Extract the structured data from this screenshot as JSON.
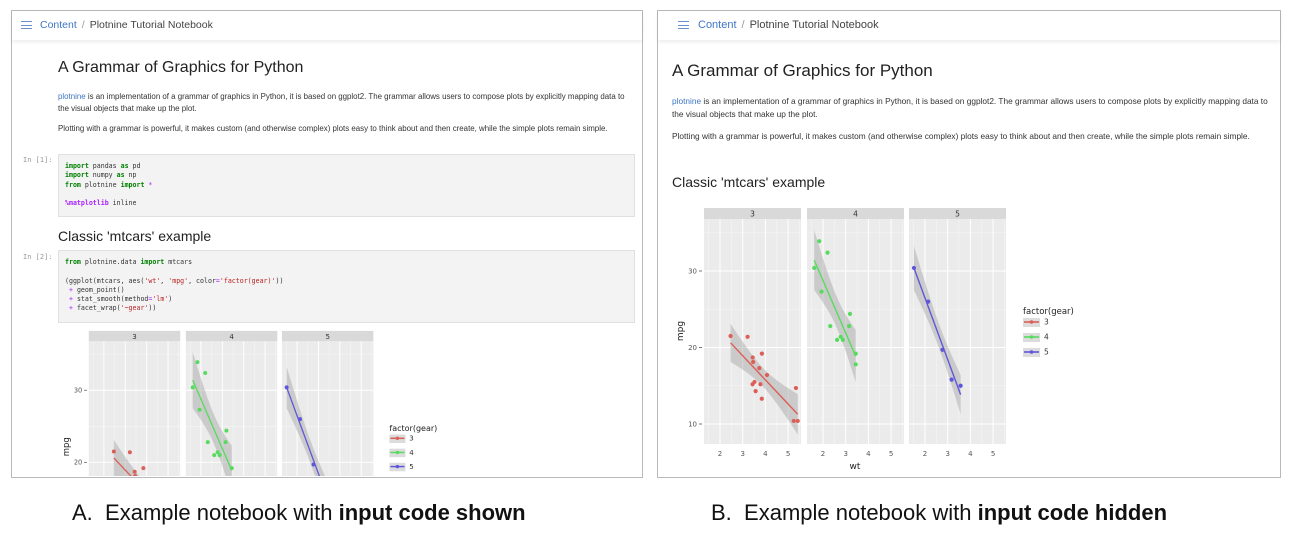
{
  "breadcrumb": {
    "root": "Content",
    "separator": "/",
    "current": "Plotnine Tutorial Notebook"
  },
  "notebook": {
    "title": "A Grammar of Graphics for Python",
    "para1_link": "plotnine",
    "para1_rest": " is an implementation of a grammar of graphics in Python, it is based on ggplot2. The grammar allows users to compose plots by explicitly mapping data to the visual objects that make up the plot.",
    "para2": "Plotting with a grammar is powerful, it makes custom (and otherwise complex) plots easy to think about and then create, while the simple plots remain simple.",
    "heading2": "Classic 'mtcars' example",
    "cells": [
      {
        "prompt": "In [1]:",
        "lines": [
          [
            {
              "k": "kw",
              "t": "import"
            },
            {
              "k": "",
              "t": " pandas "
            },
            {
              "k": "kw",
              "t": "as"
            },
            {
              "k": "",
              "t": " pd"
            }
          ],
          [
            {
              "k": "kw",
              "t": "import"
            },
            {
              "k": "",
              "t": " numpy "
            },
            {
              "k": "kw",
              "t": "as"
            },
            {
              "k": "",
              "t": " np"
            }
          ],
          [
            {
              "k": "kw",
              "t": "from"
            },
            {
              "k": "",
              "t": " plotnine "
            },
            {
              "k": "kw",
              "t": "import"
            },
            {
              "k": "",
              "t": " "
            },
            {
              "k": "op",
              "t": "*"
            }
          ],
          [],
          [
            {
              "k": "magic",
              "t": "%matplotlib"
            },
            {
              "k": "",
              "t": " inline"
            }
          ]
        ]
      },
      {
        "prompt": "In [2]:",
        "lines": [
          [
            {
              "k": "kw",
              "t": "from"
            },
            {
              "k": "",
              "t": " plotnine.data "
            },
            {
              "k": "kw",
              "t": "import"
            },
            {
              "k": "",
              "t": " mtcars"
            }
          ],
          [],
          [
            {
              "k": "",
              "t": "(ggplot(mtcars, aes("
            },
            {
              "k": "str",
              "t": "'wt'"
            },
            {
              "k": "",
              "t": ", "
            },
            {
              "k": "str",
              "t": "'mpg'"
            },
            {
              "k": "",
              "t": ", color"
            },
            {
              "k": "op",
              "t": "="
            },
            {
              "k": "str",
              "t": "'factor(gear)'"
            },
            {
              "k": "",
              "t": "))"
            }
          ],
          [
            {
              "k": "",
              "t": " "
            },
            {
              "k": "op",
              "t": "+"
            },
            {
              "k": "",
              "t": " geom_point()"
            }
          ],
          [
            {
              "k": "",
              "t": " "
            },
            {
              "k": "op",
              "t": "+"
            },
            {
              "k": "",
              "t": " stat_smooth(method"
            },
            {
              "k": "op",
              "t": "="
            },
            {
              "k": "str",
              "t": "'lm'"
            },
            {
              "k": "",
              "t": ")"
            }
          ],
          [
            {
              "k": "",
              "t": " "
            },
            {
              "k": "op",
              "t": "+"
            },
            {
              "k": "",
              "t": " facet_wrap("
            },
            {
              "k": "str",
              "t": "'~gear'"
            },
            {
              "k": "",
              "t": "))"
            }
          ]
        ]
      }
    ]
  },
  "captions": [
    {
      "letter": "A.",
      "text": "Example notebook with ",
      "bold": "input code shown"
    },
    {
      "letter": "B.",
      "text": "Example notebook with ",
      "bold": "input code hidden"
    }
  ],
  "chart_data": {
    "type": "scatter",
    "xlabel": "wt",
    "ylabel": "mpg",
    "legend_title": "factor(gear)",
    "legend_placement": "right",
    "xlim": [
      1.3,
      5.57
    ],
    "ylim": [
      7.4,
      36.8
    ],
    "x_ticks": [
      "2",
      "3",
      "4",
      "5"
    ],
    "y_ticks": [
      "10",
      "20",
      "30"
    ],
    "grid": true,
    "smooth": "lm",
    "facets": [
      {
        "label": "3",
        "color": "#db5f57",
        "points": [
          [
            3.215,
            21.4
          ],
          [
            3.44,
            18.7
          ],
          [
            3.46,
            18.1
          ],
          [
            3.57,
            14.3
          ],
          [
            4.07,
            16.4
          ],
          [
            3.73,
            17.3
          ],
          [
            3.78,
            15.2
          ],
          [
            5.25,
            10.4
          ],
          [
            5.424,
            10.4
          ],
          [
            5.345,
            14.7
          ],
          [
            2.465,
            21.5
          ],
          [
            3.52,
            15.5
          ],
          [
            3.435,
            15.2
          ],
          [
            3.84,
            13.3
          ],
          [
            3.845,
            19.2
          ]
        ]
      },
      {
        "label": "4",
        "color": "#57db5f",
        "points": [
          [
            2.62,
            21.0
          ],
          [
            2.875,
            21.0
          ],
          [
            2.32,
            22.8
          ],
          [
            3.19,
            24.4
          ],
          [
            3.15,
            22.8
          ],
          [
            3.44,
            19.2
          ],
          [
            3.44,
            17.8
          ],
          [
            2.2,
            32.4
          ],
          [
            1.615,
            30.4
          ],
          [
            1.835,
            33.9
          ],
          [
            1.935,
            27.3
          ],
          [
            2.78,
            21.4
          ]
        ]
      },
      {
        "label": "5",
        "color": "#5f57db",
        "points": [
          [
            2.14,
            26.0
          ],
          [
            1.513,
            30.4
          ],
          [
            3.17,
            15.8
          ],
          [
            2.77,
            19.7
          ],
          [
            3.57,
            15.0
          ]
        ]
      }
    ]
  }
}
